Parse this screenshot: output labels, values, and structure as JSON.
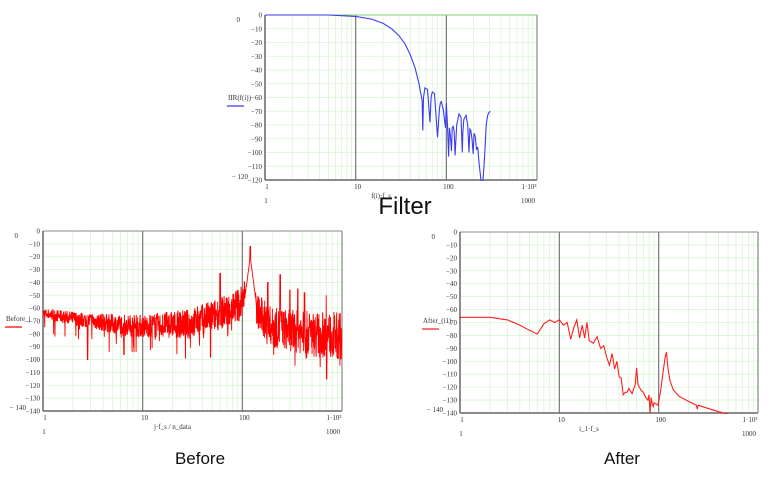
{
  "chart_data": [
    {
      "id": "filter",
      "type": "line",
      "title": "Filter",
      "legend_label": "IIR(f(i))",
      "xlabel": "f(i)·f_s",
      "x_scale": "log",
      "xlim": [
        1,
        1000
      ],
      "x_ticks": [
        "1",
        "10",
        "100",
        "1·10³"
      ],
      "x_range_labels": [
        "1",
        "1000"
      ],
      "ylim": [
        -120,
        0
      ],
      "y_ticks": [
        0,
        -10,
        -20,
        -30,
        -40,
        -50,
        -60,
        -70,
        -80,
        -90,
        -100,
        -110,
        -120
      ],
      "y_range_labels": [
        "0",
        "-120"
      ],
      "grid": true,
      "color": "#3b3bf0",
      "series": [
        {
          "name": "IIR(f(i))",
          "x": [
            1,
            5,
            10,
            15,
            20,
            25,
            30,
            35,
            40,
            45,
            50,
            54,
            55,
            56,
            58,
            62,
            66,
            68,
            70,
            74,
            80,
            84,
            86,
            88,
            92,
            98,
            100,
            103,
            106,
            108,
            111,
            114,
            116,
            119,
            122,
            125,
            130,
            138,
            145,
            150,
            152,
            156,
            165,
            172,
            178,
            182,
            186,
            192,
            198,
            202,
            208,
            215,
            222,
            230,
            240,
            250,
            260,
            270,
            275,
            285,
            295,
            305
          ],
          "y": [
            0,
            0,
            -1,
            -3,
            -6,
            -10,
            -15,
            -21,
            -29,
            -38,
            -50,
            -62,
            -84,
            -60,
            -53,
            -54,
            -78,
            -60,
            -56,
            -57,
            -89,
            -68,
            -64,
            -63,
            -68,
            -82,
            -64,
            -80,
            -103,
            -82,
            -88,
            -99,
            -82,
            -81,
            -85,
            -102,
            -80,
            -72,
            -74,
            -100,
            -86,
            -76,
            -73,
            -80,
            -100,
            -83,
            -84,
            -90,
            -101,
            -86,
            -88,
            -98,
            -96,
            -108,
            -119,
            -125,
            -110,
            -92,
            -80,
            -73,
            -71,
            -70
          ]
        }
      ]
    },
    {
      "id": "before",
      "type": "line",
      "title": "Before",
      "legend_label": "Before_j",
      "xlabel": "j·f_s / n_data",
      "x_scale": "log",
      "xlim": [
        1,
        1000
      ],
      "x_ticks": [
        "1",
        "10",
        "100",
        "1·10³"
      ],
      "x_range_labels": [
        "1",
        "1000"
      ],
      "ylim": [
        -140,
        0
      ],
      "y_ticks": [
        0,
        -10,
        -20,
        -30,
        -40,
        -50,
        -60,
        -70,
        -80,
        -90,
        -100,
        -110,
        -120,
        -130,
        -140
      ],
      "y_range_labels": [
        "0",
        "-140"
      ],
      "grid": true,
      "color": "#ff0000",
      "noise_floor": [
        [
          1,
          -64
        ],
        [
          2,
          -68
        ],
        [
          5,
          -72
        ],
        [
          10,
          -74
        ],
        [
          30,
          -72
        ],
        [
          60,
          -64
        ],
        [
          80,
          -60
        ],
        [
          100,
          -55
        ],
        [
          120,
          -45
        ],
        [
          130,
          -60
        ],
        [
          200,
          -75
        ],
        [
          500,
          -80
        ],
        [
          1000,
          -82
        ]
      ],
      "peaks": [
        {
          "x": 60,
          "y": -33
        },
        {
          "x": 120,
          "y": -12
        },
        {
          "x": 180,
          "y": -40
        },
        {
          "x": 240,
          "y": -34
        },
        {
          "x": 300,
          "y": -46
        },
        {
          "x": 360,
          "y": -45
        },
        {
          "x": 420,
          "y": -48
        },
        {
          "x": 700,
          "y": -50
        }
      ],
      "dips": [
        {
          "x": 2.8,
          "y": -100
        },
        {
          "x": 6.5,
          "y": -96
        },
        {
          "x": 48,
          "y": -98
        },
        {
          "x": 700,
          "y": -115
        }
      ]
    },
    {
      "id": "after",
      "type": "line",
      "title": "After",
      "legend_label": "After_(i1)",
      "xlabel": "i_1·f_s",
      "x_scale": "log",
      "xlim": [
        1,
        1000
      ],
      "x_ticks": [
        "1",
        "10",
        "100",
        "1·10³"
      ],
      "x_range_labels": [
        "1",
        "1000"
      ],
      "ylim": [
        -140,
        0
      ],
      "y_ticks": [
        0,
        -10,
        -20,
        -30,
        -40,
        -50,
        -60,
        -70,
        -80,
        -90,
        -100,
        -110,
        -120,
        -130,
        -140
      ],
      "y_range_labels": [
        "0",
        "-140"
      ],
      "grid": true,
      "color": "#ff2020",
      "series": [
        {
          "name": "After_(i1)",
          "x": [
            1,
            2,
            3,
            4,
            5,
            6,
            7,
            8,
            9,
            10,
            11,
            12,
            13,
            14,
            15,
            16,
            17,
            18,
            19,
            20,
            22,
            24,
            26,
            28,
            30,
            32,
            34,
            36,
            38,
            40,
            42,
            44,
            46,
            48,
            50,
            54,
            58,
            60,
            62,
            66,
            70,
            74,
            78,
            80,
            82,
            84,
            86,
            88,
            90,
            94,
            98,
            100,
            104,
            110,
            116,
            120,
            124,
            130,
            140,
            160,
            200,
            240,
            245,
            250,
            300,
            400,
            500
          ],
          "y": [
            -66,
            -66,
            -68,
            -72,
            -76,
            -79,
            -71,
            -68,
            -70,
            -68,
            -72,
            -70,
            -83,
            -74,
            -68,
            -82,
            -72,
            -82,
            -70,
            -84,
            -86,
            -81,
            -90,
            -88,
            -97,
            -103,
            -94,
            -106,
            -100,
            -112,
            -113,
            -126,
            -124,
            -124,
            -121,
            -125,
            -118,
            -105,
            -118,
            -122,
            -124,
            -128,
            -130,
            -126,
            -140,
            -128,
            -133,
            -135,
            -132,
            -133,
            -134,
            -131,
            -124,
            -110,
            -97,
            -93,
            -105,
            -115,
            -122,
            -127,
            -131,
            -134,
            -137,
            -134,
            -136,
            -139,
            -141
          ]
        }
      ]
    }
  ],
  "captions": {
    "filter": "Filter",
    "before": "Before",
    "after": "After"
  }
}
